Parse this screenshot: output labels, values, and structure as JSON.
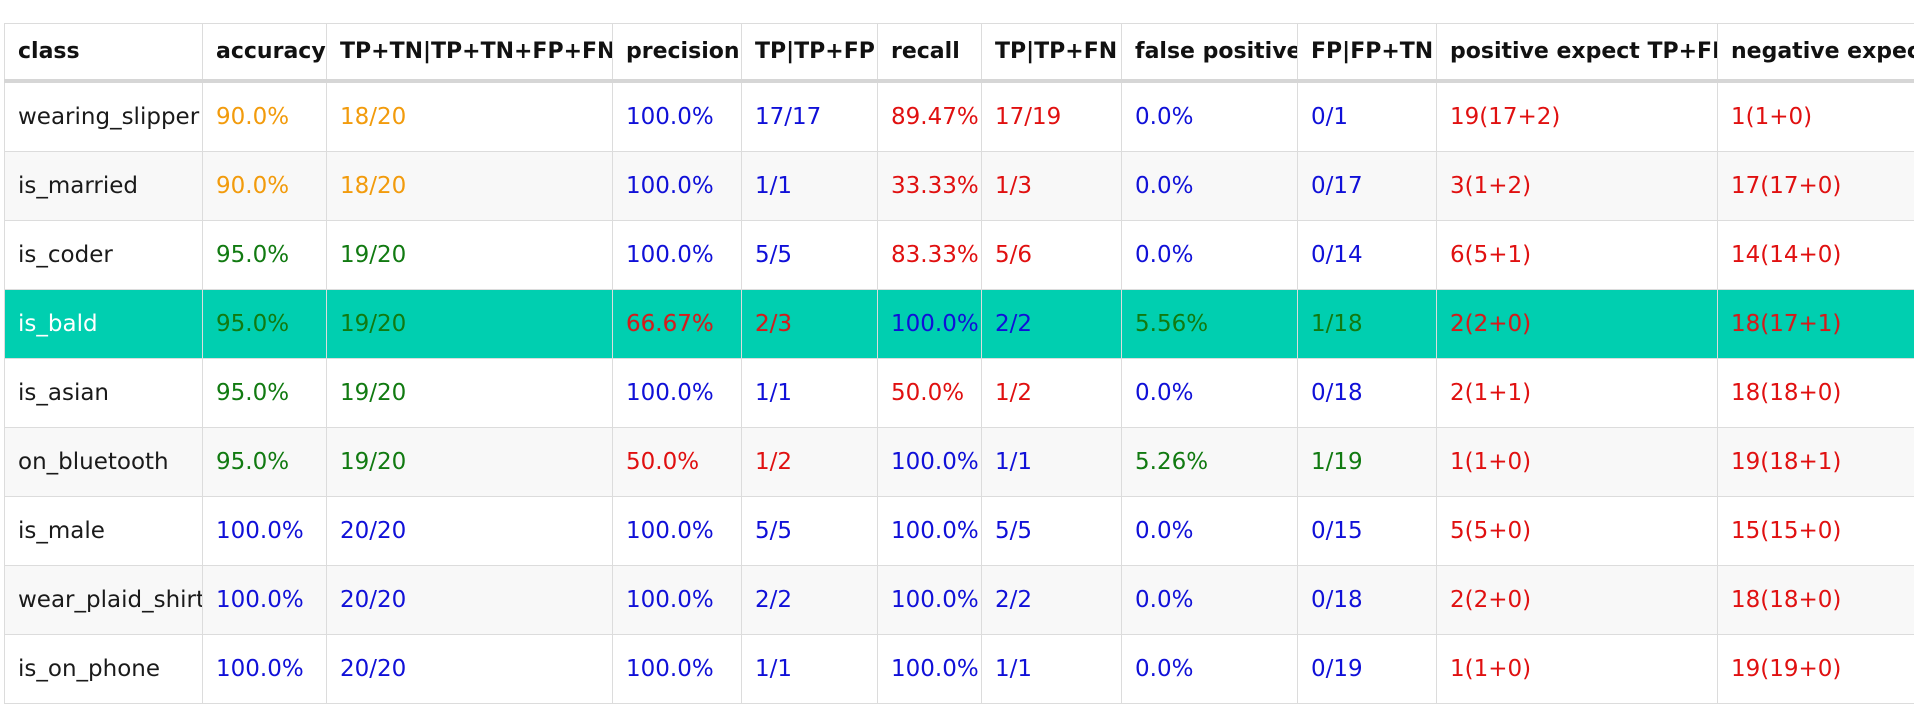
{
  "colors": {
    "orange": "#f29b0c",
    "blue": "#1010d8",
    "red": "#e01010",
    "green": "#117a11",
    "highlight_row": "#00cfb0"
  },
  "table": {
    "headers": [
      "class",
      "accuracy",
      "TP+TN|TP+TN+FP+FN",
      "precision",
      "TP|TP+FP",
      "recall",
      "TP|TP+FN",
      "false positive",
      "FP|FP+TN",
      "positive expect TP+FN",
      "negative expect TN+FP"
    ],
    "rows": [
      {
        "cells": [
          {
            "v": "wearing_slipper",
            "c": ""
          },
          {
            "v": "90.0%",
            "c": "orange"
          },
          {
            "v": "18/20",
            "c": "orange"
          },
          {
            "v": "100.0%",
            "c": "blue"
          },
          {
            "v": "17/17",
            "c": "blue"
          },
          {
            "v": "89.47%",
            "c": "red"
          },
          {
            "v": "17/19",
            "c": "red"
          },
          {
            "v": "0.0%",
            "c": "blue"
          },
          {
            "v": "0/1",
            "c": "blue"
          },
          {
            "v": "19(17+2)",
            "c": "red"
          },
          {
            "v": "1(1+0)",
            "c": "red"
          }
        ]
      },
      {
        "cells": [
          {
            "v": "is_married",
            "c": ""
          },
          {
            "v": "90.0%",
            "c": "orange"
          },
          {
            "v": "18/20",
            "c": "orange"
          },
          {
            "v": "100.0%",
            "c": "blue"
          },
          {
            "v": "1/1",
            "c": "blue"
          },
          {
            "v": "33.33%",
            "c": "red"
          },
          {
            "v": "1/3",
            "c": "red"
          },
          {
            "v": "0.0%",
            "c": "blue"
          },
          {
            "v": "0/17",
            "c": "blue"
          },
          {
            "v": "3(1+2)",
            "c": "red"
          },
          {
            "v": "17(17+0)",
            "c": "red"
          }
        ]
      },
      {
        "cells": [
          {
            "v": "is_coder",
            "c": ""
          },
          {
            "v": "95.0%",
            "c": "green"
          },
          {
            "v": "19/20",
            "c": "green"
          },
          {
            "v": "100.0%",
            "c": "blue"
          },
          {
            "v": "5/5",
            "c": "blue"
          },
          {
            "v": "83.33%",
            "c": "red"
          },
          {
            "v": "5/6",
            "c": "red"
          },
          {
            "v": "0.0%",
            "c": "blue"
          },
          {
            "v": "0/14",
            "c": "blue"
          },
          {
            "v": "6(5+1)",
            "c": "red"
          },
          {
            "v": "14(14+0)",
            "c": "red"
          }
        ]
      },
      {
        "highlight": true,
        "cells": [
          {
            "v": "is_bald",
            "c": ""
          },
          {
            "v": "95.0%",
            "c": "green"
          },
          {
            "v": "19/20",
            "c": "green"
          },
          {
            "v": "66.67%",
            "c": "red"
          },
          {
            "v": "2/3",
            "c": "red"
          },
          {
            "v": "100.0%",
            "c": "blue"
          },
          {
            "v": "2/2",
            "c": "blue"
          },
          {
            "v": "5.56%",
            "c": "green"
          },
          {
            "v": "1/18",
            "c": "green"
          },
          {
            "v": "2(2+0)",
            "c": "red"
          },
          {
            "v": "18(17+1)",
            "c": "red"
          }
        ]
      },
      {
        "cells": [
          {
            "v": "is_asian",
            "c": ""
          },
          {
            "v": "95.0%",
            "c": "green"
          },
          {
            "v": "19/20",
            "c": "green"
          },
          {
            "v": "100.0%",
            "c": "blue"
          },
          {
            "v": "1/1",
            "c": "blue"
          },
          {
            "v": "50.0%",
            "c": "red"
          },
          {
            "v": "1/2",
            "c": "red"
          },
          {
            "v": "0.0%",
            "c": "blue"
          },
          {
            "v": "0/18",
            "c": "blue"
          },
          {
            "v": "2(1+1)",
            "c": "red"
          },
          {
            "v": "18(18+0)",
            "c": "red"
          }
        ]
      },
      {
        "cells": [
          {
            "v": "on_bluetooth",
            "c": ""
          },
          {
            "v": "95.0%",
            "c": "green"
          },
          {
            "v": "19/20",
            "c": "green"
          },
          {
            "v": "50.0%",
            "c": "red"
          },
          {
            "v": "1/2",
            "c": "red"
          },
          {
            "v": "100.0%",
            "c": "blue"
          },
          {
            "v": "1/1",
            "c": "blue"
          },
          {
            "v": "5.26%",
            "c": "green"
          },
          {
            "v": "1/19",
            "c": "green"
          },
          {
            "v": "1(1+0)",
            "c": "red"
          },
          {
            "v": "19(18+1)",
            "c": "red"
          }
        ]
      },
      {
        "cells": [
          {
            "v": "is_male",
            "c": ""
          },
          {
            "v": "100.0%",
            "c": "blue"
          },
          {
            "v": "20/20",
            "c": "blue"
          },
          {
            "v": "100.0%",
            "c": "blue"
          },
          {
            "v": "5/5",
            "c": "blue"
          },
          {
            "v": "100.0%",
            "c": "blue"
          },
          {
            "v": "5/5",
            "c": "blue"
          },
          {
            "v": "0.0%",
            "c": "blue"
          },
          {
            "v": "0/15",
            "c": "blue"
          },
          {
            "v": "5(5+0)",
            "c": "red"
          },
          {
            "v": "15(15+0)",
            "c": "red"
          }
        ]
      },
      {
        "cells": [
          {
            "v": "wear_plaid_shirt",
            "c": ""
          },
          {
            "v": "100.0%",
            "c": "blue"
          },
          {
            "v": "20/20",
            "c": "blue"
          },
          {
            "v": "100.0%",
            "c": "blue"
          },
          {
            "v": "2/2",
            "c": "blue"
          },
          {
            "v": "100.0%",
            "c": "blue"
          },
          {
            "v": "2/2",
            "c": "blue"
          },
          {
            "v": "0.0%",
            "c": "blue"
          },
          {
            "v": "0/18",
            "c": "blue"
          },
          {
            "v": "2(2+0)",
            "c": "red"
          },
          {
            "v": "18(18+0)",
            "c": "red"
          }
        ]
      },
      {
        "cells": [
          {
            "v": "is_on_phone",
            "c": ""
          },
          {
            "v": "100.0%",
            "c": "blue"
          },
          {
            "v": "20/20",
            "c": "blue"
          },
          {
            "v": "100.0%",
            "c": "blue"
          },
          {
            "v": "1/1",
            "c": "blue"
          },
          {
            "v": "100.0%",
            "c": "blue"
          },
          {
            "v": "1/1",
            "c": "blue"
          },
          {
            "v": "0.0%",
            "c": "blue"
          },
          {
            "v": "0/19",
            "c": "blue"
          },
          {
            "v": "1(1+0)",
            "c": "red"
          },
          {
            "v": "19(19+0)",
            "c": "red"
          }
        ]
      }
    ]
  }
}
